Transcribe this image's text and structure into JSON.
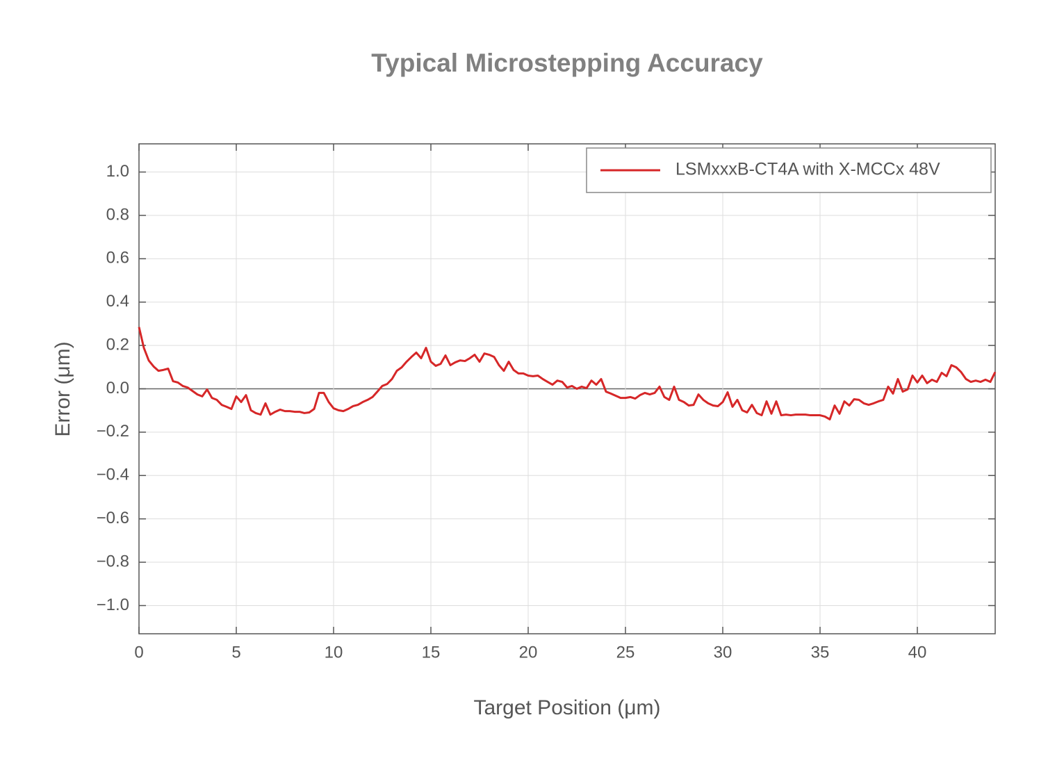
{
  "chart_data": {
    "type": "line",
    "title": "Typical Microstepping Accuracy",
    "x_label": "Target Position (μm)",
    "y_label": "Error (μm)",
    "xlim": [
      0,
      44
    ],
    "ylim": [
      -1.13,
      1.13
    ],
    "xticks": [
      0,
      5,
      10,
      15,
      20,
      25,
      30,
      35,
      40
    ],
    "yticks": [
      {
        "value": -1.0,
        "label": "−1.0"
      },
      {
        "value": -0.8,
        "label": "−0.8"
      },
      {
        "value": -0.6,
        "label": "−0.6"
      },
      {
        "value": -0.4,
        "label": "−0.4"
      },
      {
        "value": -0.2,
        "label": "−0.2"
      },
      {
        "value": 0.0,
        "label": "0.0"
      },
      {
        "value": 0.2,
        "label": "0.2"
      },
      {
        "value": 0.4,
        "label": "0.4"
      },
      {
        "value": 0.6,
        "label": "0.6"
      },
      {
        "value": 0.8,
        "label": "0.8"
      },
      {
        "value": 1.0,
        "label": "1.0"
      }
    ],
    "grid": true,
    "legend": "upper right",
    "x": [
      0,
      0.25,
      0.5,
      0.75,
      1,
      1.25,
      1.5,
      1.75,
      2,
      2.25,
      2.5,
      2.75,
      3,
      3.25,
      3.5,
      3.75,
      4,
      4.25,
      4.5,
      4.75,
      5,
      5.25,
      5.5,
      5.75,
      6,
      6.25,
      6.5,
      6.75,
      7,
      7.25,
      7.5,
      7.75,
      8,
      8.25,
      8.5,
      8.75,
      9,
      9.25,
      9.5,
      9.75,
      10,
      10.25,
      10.5,
      10.75,
      11,
      11.25,
      11.5,
      11.75,
      12,
      12.25,
      12.5,
      12.75,
      13,
      13.25,
      13.5,
      13.75,
      14,
      14.25,
      14.5,
      14.75,
      15,
      15.25,
      15.5,
      15.75,
      16,
      16.25,
      16.5,
      16.75,
      17,
      17.25,
      17.5,
      17.75,
      18,
      18.25,
      18.5,
      18.75,
      19,
      19.25,
      19.5,
      19.75,
      20,
      20.25,
      20.5,
      20.75,
      21,
      21.25,
      21.5,
      21.75,
      22,
      22.25,
      22.5,
      22.75,
      23,
      23.25,
      23.5,
      23.75,
      24,
      24.25,
      24.5,
      24.75,
      25,
      25.25,
      25.5,
      25.75,
      26,
      26.25,
      26.5,
      26.75,
      27,
      27.25,
      27.5,
      27.75,
      28,
      28.25,
      28.5,
      28.75,
      29,
      29.25,
      29.5,
      29.75,
      30,
      30.25,
      30.5,
      30.75,
      31,
      31.25,
      31.5,
      31.75,
      32,
      32.25,
      32.5,
      32.75,
      33,
      33.25,
      33.5,
      33.75,
      34,
      34.25,
      34.5,
      34.75,
      35,
      35.25,
      35.5,
      35.75,
      36,
      36.25,
      36.5,
      36.75,
      37,
      37.25,
      37.5,
      37.75,
      38,
      38.25,
      38.5,
      38.75,
      39,
      39.25,
      39.5,
      39.75,
      40,
      40.25,
      40.5,
      40.75,
      41,
      41.25,
      41.5,
      41.75,
      42,
      42.25,
      42.5,
      42.75,
      43,
      43.25,
      43.5,
      43.75,
      44
    ],
    "series": [
      {
        "name": "LSMxxxB-CT4A with X-MCCx 48V",
        "color": "#d62728",
        "values": [
          0.285,
          0.189,
          0.131,
          0.103,
          0.083,
          0.087,
          0.093,
          0.035,
          0.029,
          0.013,
          0.006,
          -0.01,
          -0.026,
          -0.035,
          -0.003,
          -0.042,
          -0.051,
          -0.074,
          -0.083,
          -0.093,
          -0.035,
          -0.061,
          -0.029,
          -0.099,
          -0.112,
          -0.119,
          -0.067,
          -0.119,
          -0.106,
          -0.096,
          -0.103,
          -0.103,
          -0.106,
          -0.106,
          -0.112,
          -0.109,
          -0.093,
          -0.019,
          -0.019,
          -0.061,
          -0.09,
          -0.099,
          -0.103,
          -0.093,
          -0.08,
          -0.074,
          -0.061,
          -0.051,
          -0.038,
          -0.013,
          0.013,
          0.022,
          0.045,
          0.083,
          0.099,
          0.125,
          0.147,
          0.167,
          0.141,
          0.189,
          0.125,
          0.106,
          0.115,
          0.154,
          0.109,
          0.122,
          0.131,
          0.128,
          0.141,
          0.157,
          0.125,
          0.163,
          0.157,
          0.147,
          0.109,
          0.083,
          0.125,
          0.087,
          0.071,
          0.071,
          0.061,
          0.058,
          0.061,
          0.045,
          0.032,
          0.019,
          0.038,
          0.032,
          0.006,
          0.013,
          0,
          0.01,
          0.003,
          0.038,
          0.019,
          0.045,
          -0.013,
          -0.022,
          -0.032,
          -0.042,
          -0.042,
          -0.038,
          -0.045,
          -0.029,
          -0.019,
          -0.026,
          -0.019,
          0.01,
          -0.038,
          -0.051,
          0.01,
          -0.051,
          -0.061,
          -0.077,
          -0.074,
          -0.026,
          -0.051,
          -0.067,
          -0.077,
          -0.08,
          -0.061,
          -0.016,
          -0.083,
          -0.051,
          -0.099,
          -0.109,
          -0.074,
          -0.112,
          -0.122,
          -0.058,
          -0.115,
          -0.058,
          -0.122,
          -0.119,
          -0.122,
          -0.119,
          -0.119,
          -0.119,
          -0.122,
          -0.122,
          -0.122,
          -0.128,
          -0.141,
          -0.077,
          -0.115,
          -0.058,
          -0.077,
          -0.048,
          -0.051,
          -0.067,
          -0.074,
          -0.067,
          -0.058,
          -0.051,
          0.01,
          -0.022,
          0.045,
          -0.013,
          -0.003,
          0.061,
          0.029,
          0.061,
          0.026,
          0.042,
          0.032,
          0.074,
          0.058,
          0.109,
          0.099,
          0.077,
          0.045,
          0.032,
          0.038,
          0.032,
          0.042,
          0.032,
          0.077
        ]
      }
    ]
  }
}
